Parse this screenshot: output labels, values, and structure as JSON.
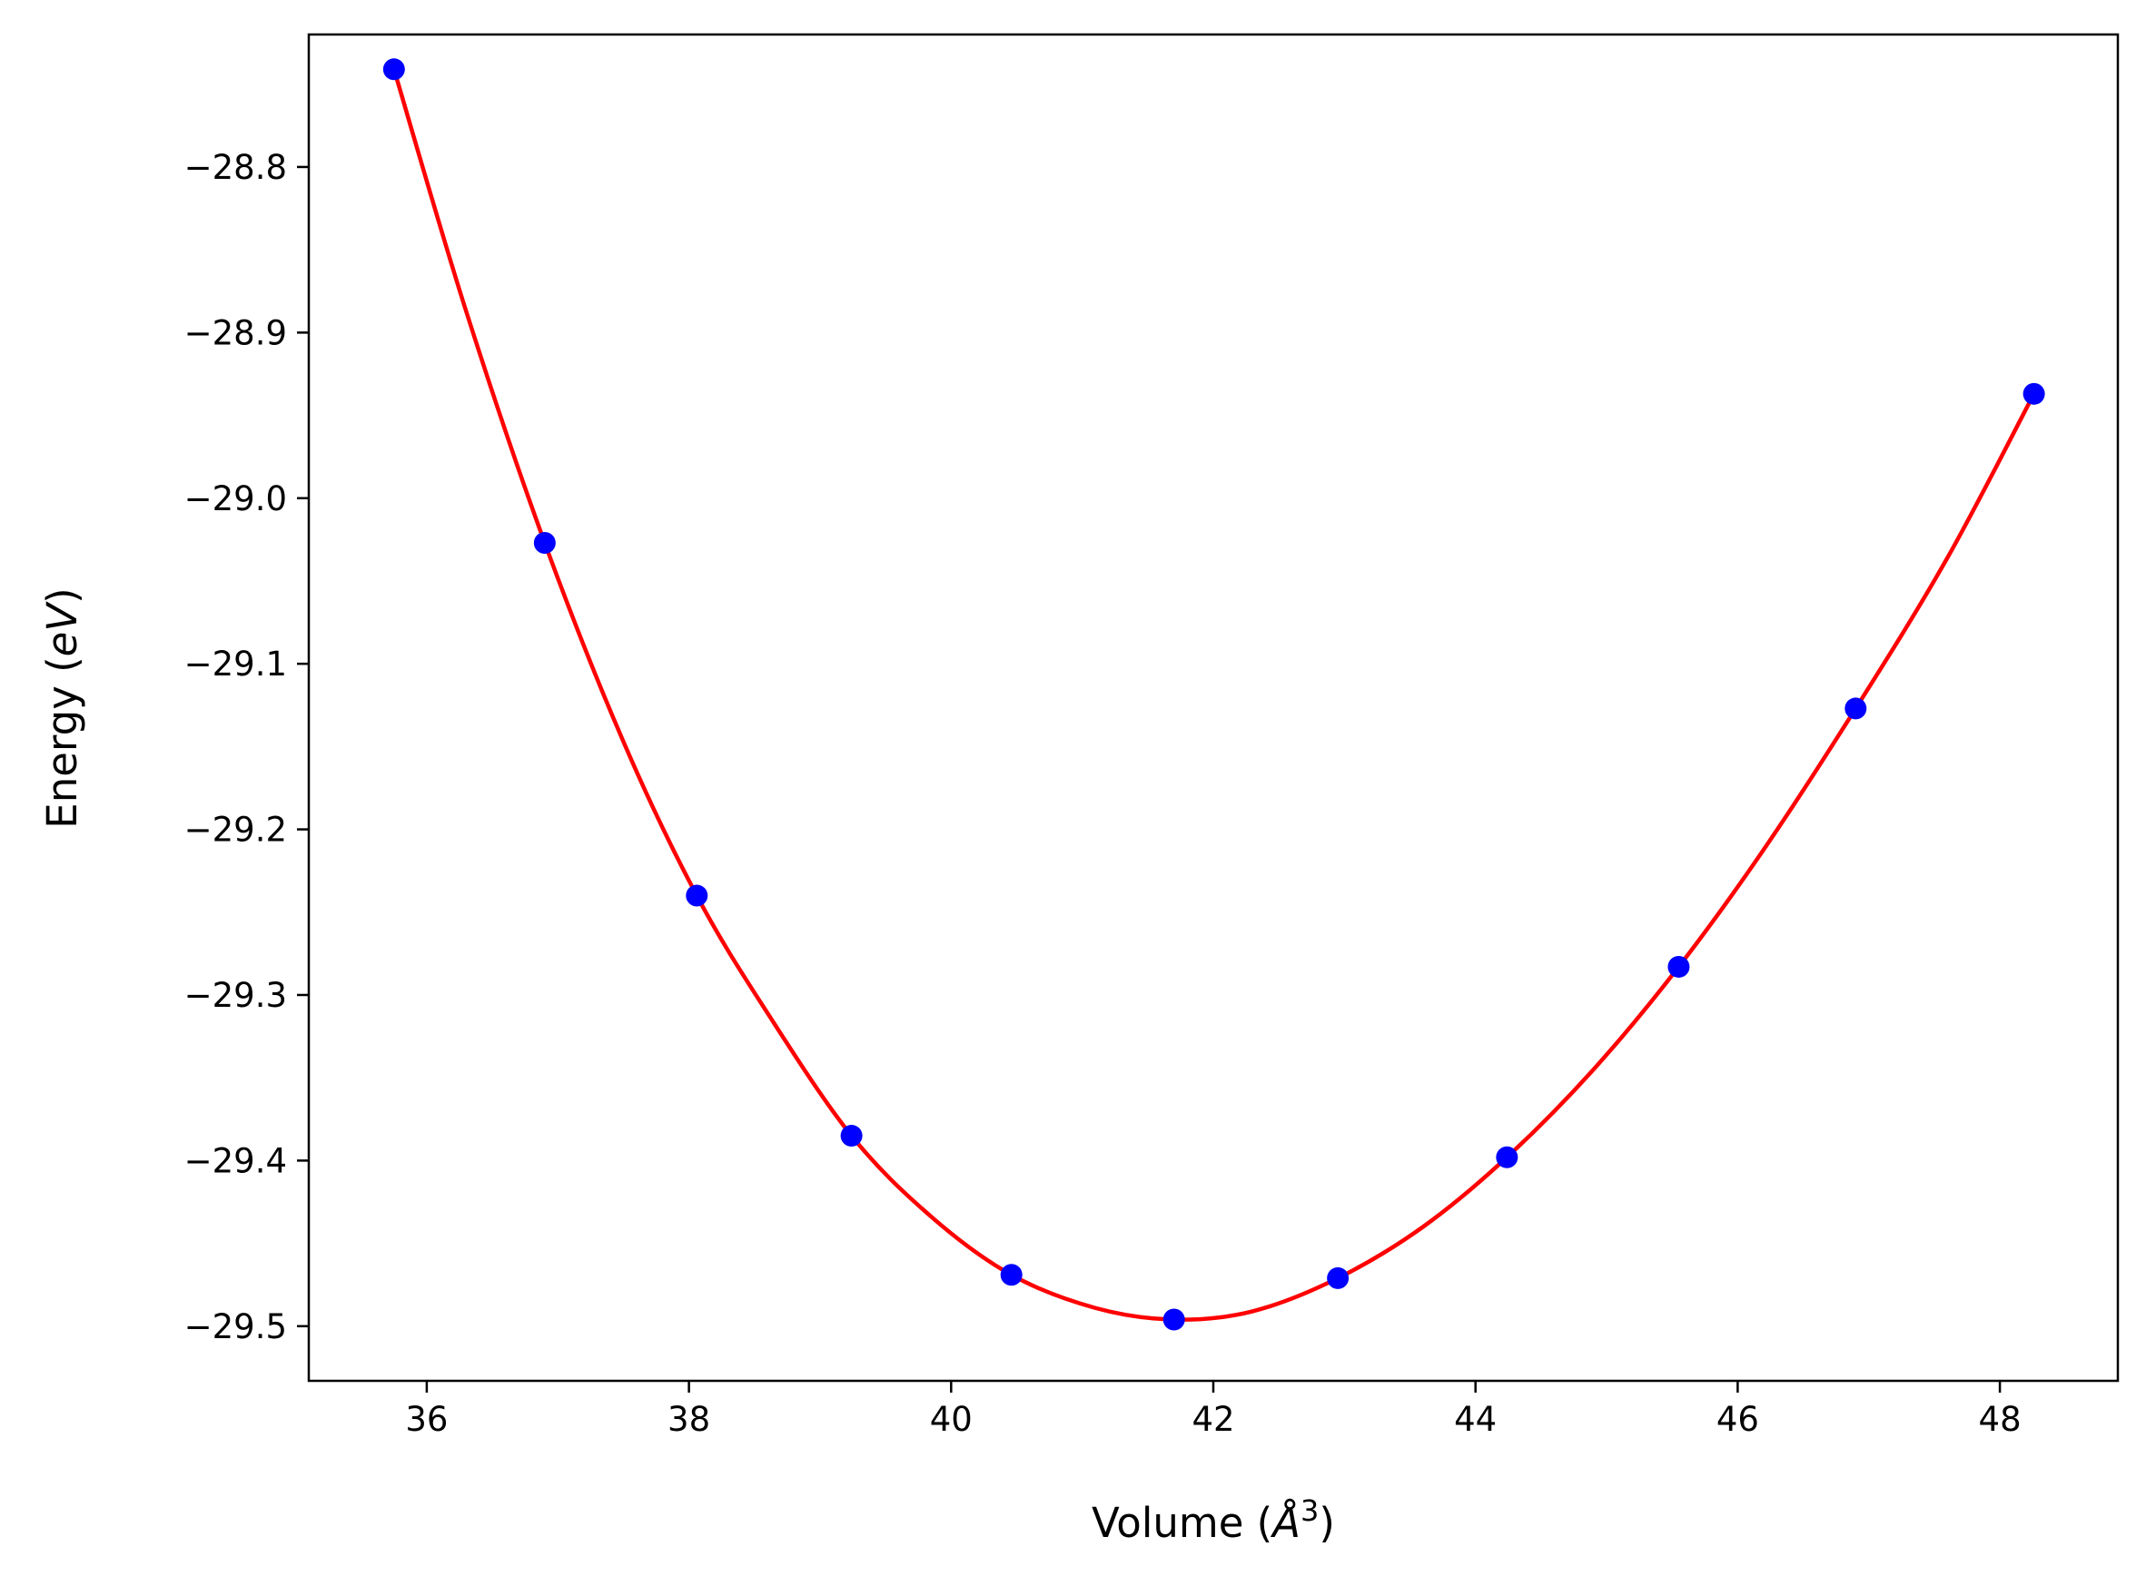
{
  "chart_data": {
    "type": "scatter",
    "xlabel_parts": {
      "prefix": "Volume (",
      "italic": "Å",
      "sup": "3",
      "suffix": ")"
    },
    "ylabel_parts": {
      "prefix": "Energy (",
      "italic": "eV",
      "suffix": ")"
    },
    "xlim": [
      35.1,
      48.9
    ],
    "ylim": [
      -29.533,
      -28.72
    ],
    "xticks": [
      36,
      38,
      40,
      42,
      44,
      46,
      48
    ],
    "yticks": [
      -28.8,
      -28.9,
      -29.0,
      -29.1,
      -29.2,
      -29.3,
      -29.4,
      -29.5
    ],
    "xtick_labels": [
      "36",
      "38",
      "40",
      "42",
      "44",
      "46",
      "48"
    ],
    "ytick_labels": [
      "−28.8",
      "−28.9",
      "−29.0",
      "−29.1",
      "−29.2",
      "−29.3",
      "−29.4",
      "−29.5"
    ],
    "grid": false,
    "series": [
      {
        "kind": "points",
        "color": "#0000ff",
        "points": [
          [
            35.75,
            -28.741
          ],
          [
            36.9,
            -29.027
          ],
          [
            38.06,
            -29.24
          ],
          [
            39.24,
            -29.385
          ],
          [
            40.46,
            -29.469
          ],
          [
            41.7,
            -29.496
          ],
          [
            42.95,
            -29.471
          ],
          [
            44.24,
            -29.398
          ],
          [
            45.55,
            -29.283
          ],
          [
            46.9,
            -29.127
          ],
          [
            48.26,
            -28.937
          ]
        ]
      },
      {
        "kind": "fit-curve",
        "color": "#ff0000",
        "points": [
          [
            35.75,
            -28.741
          ],
          [
            36.3,
            -28.887
          ],
          [
            36.9,
            -29.027
          ],
          [
            37.5,
            -29.147
          ],
          [
            38.06,
            -29.24
          ],
          [
            38.6,
            -29.311
          ],
          [
            39.24,
            -29.385
          ],
          [
            39.85,
            -29.434
          ],
          [
            40.46,
            -29.469
          ],
          [
            41.1,
            -29.489
          ],
          [
            41.7,
            -29.496
          ],
          [
            42.3,
            -29.491
          ],
          [
            42.95,
            -29.471
          ],
          [
            43.6,
            -29.44
          ],
          [
            44.24,
            -29.398
          ],
          [
            44.9,
            -29.345
          ],
          [
            45.55,
            -29.283
          ],
          [
            46.2,
            -29.212
          ],
          [
            46.9,
            -29.127
          ],
          [
            47.6,
            -29.036
          ],
          [
            48.26,
            -28.937
          ]
        ]
      }
    ]
  }
}
